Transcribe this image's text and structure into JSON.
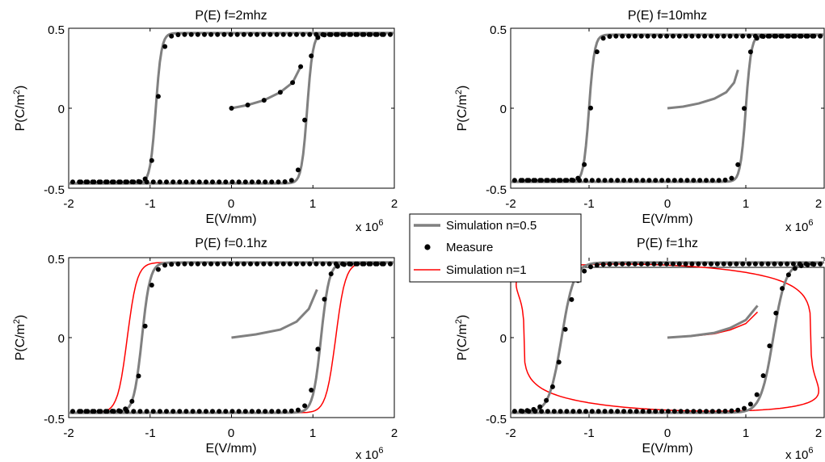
{
  "legend": {
    "placement": "center",
    "entries": [
      {
        "label": "Simulation n=0.5",
        "color": "#808080",
        "style": "line"
      },
      {
        "label": "Measure",
        "color": "#000000",
        "style": "marker"
      },
      {
        "label": "Simulation n=1",
        "color": "#ff0000",
        "style": "line"
      }
    ]
  },
  "colors": {
    "sim05": "#808080",
    "measure": "#000000",
    "sim1": "#ff0000"
  },
  "chart_data": [
    {
      "type": "line",
      "title": "P(E) f=2mhz",
      "xlabel": "E(V/mm)",
      "ylabel_prefix": "P(C/m",
      "ylabel_sup": "2",
      "ylabel_suffix": ")",
      "x_multiplier_base": "x 10",
      "x_multiplier_exp": "6",
      "xlim": [
        -2,
        2
      ],
      "ylim": [
        -0.5,
        0.5
      ],
      "xticks": [
        "-2",
        "-1",
        "0",
        "1",
        "2"
      ],
      "yticks": [
        "-0.5",
        "0",
        "0.5"
      ],
      "grid": false,
      "loop": {
        "Ec": 0.93,
        "Ps": 0.47,
        "w": 0.07
      },
      "initial_curve": {
        "x": [
          0,
          0.2,
          0.4,
          0.6,
          0.75,
          0.85
        ],
        "y": [
          0.0,
          0.02,
          0.05,
          0.1,
          0.16,
          0.26
        ]
      },
      "series": [
        {
          "name": "Simulation n=0.5",
          "color": "#808080",
          "ascending_loop": true,
          "descending_loop": true,
          "initial": true
        }
      ],
      "measure": {
        "n_points": 48,
        "initial": true
      }
    },
    {
      "type": "line",
      "title": "P(E) f=10mhz",
      "xlabel": "E(V/mm)",
      "ylabel_prefix": "P(C/m",
      "ylabel_sup": "2",
      "ylabel_suffix": ")",
      "x_multiplier_base": "x 10",
      "x_multiplier_exp": "6",
      "xlim": [
        -2,
        2
      ],
      "ylim": [
        -0.5,
        0.5
      ],
      "xticks": [
        "-2",
        "-1",
        "0",
        "1",
        "2"
      ],
      "yticks": [
        "-0.5",
        "0",
        "0.5"
      ],
      "grid": false,
      "loop": {
        "Ec": 1.0,
        "Ps": 0.46,
        "w": 0.07
      },
      "initial_curve": {
        "x": [
          0,
          0.2,
          0.4,
          0.6,
          0.75,
          0.85,
          0.9
        ],
        "y": [
          0.0,
          0.01,
          0.03,
          0.06,
          0.1,
          0.16,
          0.24
        ]
      },
      "series": [
        {
          "name": "Simulation n=0.5",
          "color": "#808080",
          "ascending_loop": true,
          "descending_loop": true,
          "initial": true
        }
      ],
      "measure": {
        "n_points": 48,
        "initial": false
      }
    },
    {
      "type": "line",
      "title": "P(E) f=0.1hz",
      "xlabel": "E(V/mm)",
      "ylabel_prefix": "P(C/m",
      "ylabel_sup": "2",
      "ylabel_suffix": ")",
      "x_multiplier_base": "x 10",
      "x_multiplier_exp": "6",
      "xlim": [
        -2,
        2
      ],
      "ylim": [
        -0.5,
        0.5
      ],
      "xticks": [
        "-2",
        "-1",
        "0",
        "1",
        "2"
      ],
      "yticks": [
        "-0.5",
        "0",
        "0.5"
      ],
      "grid": false,
      "loop": {
        "Ec": 1.1,
        "Ps": 0.47,
        "w": 0.1
      },
      "loop_red": {
        "Ec": 1.28,
        "Ps": 0.47,
        "w": 0.12
      },
      "initial_curve": {
        "x": [
          0,
          0.3,
          0.6,
          0.8,
          0.95,
          1.05
        ],
        "y": [
          0.0,
          0.02,
          0.05,
          0.1,
          0.18,
          0.3
        ]
      },
      "series": [
        {
          "name": "Simulation n=0.5",
          "color": "#808080",
          "ascending_loop": true,
          "descending_loop": true,
          "initial": true
        },
        {
          "name": "Simulation n=1",
          "color": "#ff0000",
          "ascending_loop": true,
          "descending_loop": true,
          "initial": true
        }
      ],
      "measure": {
        "n_points": 48,
        "initial": false
      }
    },
    {
      "type": "line",
      "title": "P(E) f=1hz",
      "xlabel": "E(V/mm)",
      "ylabel_prefix": "P(C/m",
      "ylabel_sup": "2",
      "ylabel_suffix": ")",
      "x_multiplier_base": "x 10",
      "x_multiplier_exp": "6",
      "xlim": [
        -2,
        2
      ],
      "ylim": [
        -0.5,
        0.5
      ],
      "xticks": [
        "-2",
        "-1",
        "0",
        "1",
        "2"
      ],
      "yticks": [
        "-0.5",
        "0",
        "0.5"
      ],
      "grid": false,
      "loop": {
        "Ec": 1.35,
        "Ps": 0.47,
        "w": 0.16
      },
      "lossy_red": {
        "a": 1.93,
        "Ps": 0.46,
        "phase": 0.32
      },
      "initial_curve": {
        "x": [
          0,
          0.3,
          0.6,
          0.8,
          1.0,
          1.15
        ],
        "y": [
          0.0,
          0.01,
          0.03,
          0.06,
          0.11,
          0.2
        ]
      },
      "series": [
        {
          "name": "Simulation n=0.5",
          "color": "#808080",
          "ascending_loop": true,
          "descending_loop": true,
          "initial": true
        },
        {
          "name": "Simulation n=1",
          "color": "#ff0000",
          "ascending_loop": true,
          "descending_loop": true,
          "initial": true
        }
      ],
      "measure": {
        "n_points": 48,
        "initial": false
      }
    }
  ]
}
